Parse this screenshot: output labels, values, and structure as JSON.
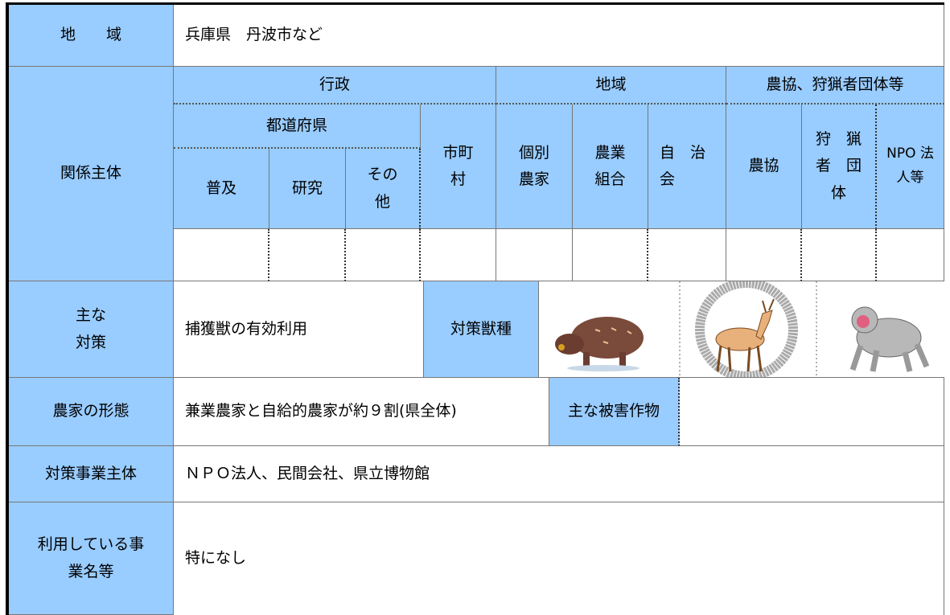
{
  "region": {
    "label": "地　　域",
    "value": "兵庫県　丹波市など"
  },
  "stakeholders": {
    "label": "関係主体",
    "groups": [
      "行政",
      "地域",
      "農協、狩猟者団体等"
    ],
    "prefecture": "都道府県",
    "prefecture_units": [
      "普及",
      "研究",
      "その\n他"
    ],
    "columns": [
      "市町\n村",
      "個別\n農家",
      "農業\n組合",
      "自　治\n会",
      "農協",
      "狩　猟\n者　団\n体",
      "NPO 法\n人等"
    ]
  },
  "measures": {
    "label": "主な\n対策",
    "value": "捕獲獣の有効利用",
    "species_label": "対策獣種"
  },
  "farm_type": {
    "label": "農家の形態",
    "value": "兼業農家と自給的農家が約９割(県全体)",
    "crops_label": "主な被害作物"
  },
  "operator": {
    "label": "対策事業主体",
    "value": "ＮＰＯ法人、民間会社、県立博物館"
  },
  "programs": {
    "label": "利用している事\n業名等",
    "value": "特になし"
  }
}
